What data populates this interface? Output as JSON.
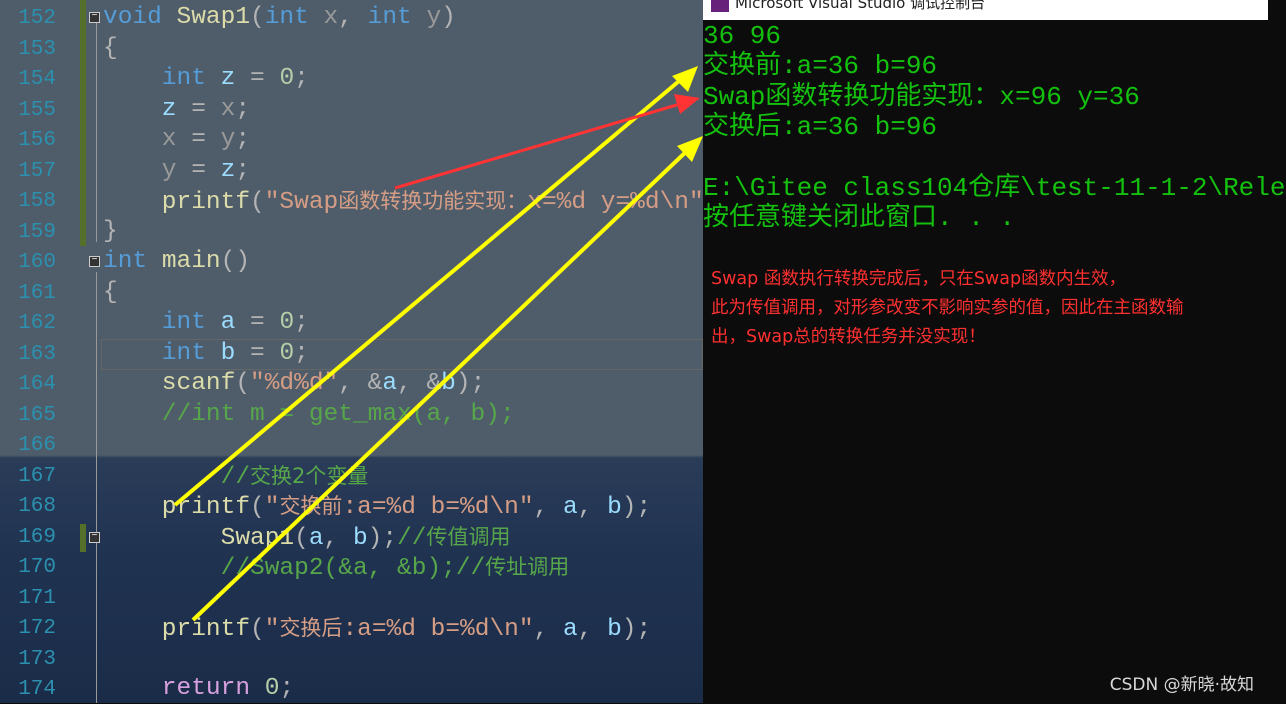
{
  "editor": {
    "colors": {
      "kw": "#569cd6",
      "fn": "#dcdcaa",
      "var": "#9cdcfe",
      "param": "#9a9a9a",
      "str": "#d69d85",
      "cmt": "#57a64a",
      "num": "#b5cea8",
      "punc": "#b4b4b4",
      "ctrl": "#d8a0df"
    },
    "lines": [
      {
        "num": "152",
        "tokens": [
          {
            "t": "void ",
            "c": "kw"
          },
          {
            "t": "Swap1",
            "c": "fn"
          },
          {
            "t": "(",
            "c": "punc"
          },
          {
            "t": "int ",
            "c": "kw"
          },
          {
            "t": "x",
            "c": "param"
          },
          {
            "t": ", ",
            "c": "punc"
          },
          {
            "t": "int ",
            "c": "kw"
          },
          {
            "t": "y",
            "c": "param"
          },
          {
            "t": ")",
            "c": "punc"
          }
        ]
      },
      {
        "num": "153",
        "tokens": [
          {
            "t": "{",
            "c": "punc"
          }
        ]
      },
      {
        "num": "154",
        "tokens": [
          {
            "t": "    int ",
            "c": "kw"
          },
          {
            "t": "z",
            "c": "var"
          },
          {
            "t": " = ",
            "c": "punc"
          },
          {
            "t": "0",
            "c": "num"
          },
          {
            "t": ";",
            "c": "punc"
          }
        ]
      },
      {
        "num": "155",
        "tokens": [
          {
            "t": "    z",
            "c": "var"
          },
          {
            "t": " = ",
            "c": "punc"
          },
          {
            "t": "x",
            "c": "param"
          },
          {
            "t": ";",
            "c": "punc"
          }
        ]
      },
      {
        "num": "156",
        "tokens": [
          {
            "t": "    x",
            "c": "param"
          },
          {
            "t": " = ",
            "c": "punc"
          },
          {
            "t": "y",
            "c": "param"
          },
          {
            "t": ";",
            "c": "punc"
          }
        ]
      },
      {
        "num": "157",
        "tokens": [
          {
            "t": "    y",
            "c": "param"
          },
          {
            "t": " = ",
            "c": "punc"
          },
          {
            "t": "z",
            "c": "var"
          },
          {
            "t": ";",
            "c": "punc"
          }
        ]
      },
      {
        "num": "158",
        "tokens": [
          {
            "t": "    printf",
            "c": "fn"
          },
          {
            "t": "(",
            "c": "punc"
          },
          {
            "t": "\"Swap",
            "c": "str"
          },
          {
            "t": "函数转换功能实现：",
            "c": "str",
            "cjk": true
          },
          {
            "t": "x=%d y=%d\\n\"",
            "c": "str"
          }
        ]
      },
      {
        "num": "159",
        "tokens": [
          {
            "t": "}",
            "c": "punc"
          }
        ]
      },
      {
        "num": "160",
        "tokens": [
          {
            "t": "int ",
            "c": "kw"
          },
          {
            "t": "main",
            "c": "fn"
          },
          {
            "t": "()",
            "c": "punc"
          }
        ]
      },
      {
        "num": "161",
        "tokens": [
          {
            "t": "{",
            "c": "punc"
          }
        ]
      },
      {
        "num": "162",
        "tokens": [
          {
            "t": "    int ",
            "c": "kw"
          },
          {
            "t": "a",
            "c": "var"
          },
          {
            "t": " = ",
            "c": "punc"
          },
          {
            "t": "0",
            "c": "num"
          },
          {
            "t": ";",
            "c": "punc"
          }
        ]
      },
      {
        "num": "163",
        "tokens": [
          {
            "t": "    int ",
            "c": "kw"
          },
          {
            "t": "b",
            "c": "var"
          },
          {
            "t": " = ",
            "c": "punc"
          },
          {
            "t": "0",
            "c": "num"
          },
          {
            "t": ";",
            "c": "punc"
          }
        ]
      },
      {
        "num": "164",
        "tokens": [
          {
            "t": "    scanf",
            "c": "fn"
          },
          {
            "t": "(",
            "c": "punc"
          },
          {
            "t": "\"%d%d\"",
            "c": "str"
          },
          {
            "t": ", &",
            "c": "punc"
          },
          {
            "t": "a",
            "c": "var"
          },
          {
            "t": ", &",
            "c": "punc"
          },
          {
            "t": "b",
            "c": "var"
          },
          {
            "t": ");",
            "c": "punc"
          }
        ]
      },
      {
        "num": "165",
        "tokens": [
          {
            "t": "    //int m = get_max(a, b);",
            "c": "cmt"
          }
        ]
      },
      {
        "num": "166",
        "tokens": []
      },
      {
        "num": "167",
        "tokens": [
          {
            "t": "        //",
            "c": "cmt"
          },
          {
            "t": "交换2个变量",
            "c": "cmt",
            "cjk": true
          }
        ]
      },
      {
        "num": "168",
        "tokens": [
          {
            "t": "    printf",
            "c": "fn"
          },
          {
            "t": "(",
            "c": "punc"
          },
          {
            "t": "\"",
            "c": "str"
          },
          {
            "t": "交换前",
            "c": "str",
            "cjk": true
          },
          {
            "t": ":a=%d b=%d\\n\"",
            "c": "str"
          },
          {
            "t": ", ",
            "c": "punc"
          },
          {
            "t": "a",
            "c": "var"
          },
          {
            "t": ", ",
            "c": "punc"
          },
          {
            "t": "b",
            "c": "var"
          },
          {
            "t": ");",
            "c": "punc"
          }
        ]
      },
      {
        "num": "169",
        "tokens": [
          {
            "t": "        Swap1",
            "c": "fn"
          },
          {
            "t": "(",
            "c": "punc"
          },
          {
            "t": "a",
            "c": "var"
          },
          {
            "t": ", ",
            "c": "punc"
          },
          {
            "t": "b",
            "c": "var"
          },
          {
            "t": ");",
            "c": "punc"
          },
          {
            "t": "//",
            "c": "cmt"
          },
          {
            "t": "传值调用",
            "c": "cmt",
            "cjk": true
          }
        ]
      },
      {
        "num": "170",
        "tokens": [
          {
            "t": "        //Swap2(&a, &b);//",
            "c": "cmt"
          },
          {
            "t": "传址调用",
            "c": "cmt",
            "cjk": true
          }
        ]
      },
      {
        "num": "171",
        "tokens": []
      },
      {
        "num": "172",
        "tokens": [
          {
            "t": "    printf",
            "c": "fn"
          },
          {
            "t": "(",
            "c": "punc"
          },
          {
            "t": "\"",
            "c": "str"
          },
          {
            "t": "交换后",
            "c": "str",
            "cjk": true
          },
          {
            "t": ":a=%d b=%d\\n\"",
            "c": "str"
          },
          {
            "t": ", ",
            "c": "punc"
          },
          {
            "t": "a",
            "c": "var"
          },
          {
            "t": ", ",
            "c": "punc"
          },
          {
            "t": "b",
            "c": "var"
          },
          {
            "t": ");",
            "c": "punc"
          }
        ]
      },
      {
        "num": "173",
        "tokens": []
      },
      {
        "num": "174",
        "tokens": [
          {
            "t": "    return ",
            "c": "ctrl"
          },
          {
            "t": "0",
            "c": "num"
          },
          {
            "t": ";",
            "c": "punc"
          }
        ]
      }
    ]
  },
  "console": {
    "title": "Microsoft Visual Studio 调试控制台",
    "text_color": "#13c10e",
    "lines": [
      "36 96",
      "交换前:a=36 b=96",
      "Swap函数转换功能实现：x=96 y=36",
      "交换后:a=36 b=96",
      "",
      "E:\\Gitee class104仓库\\test-11-1-2\\Rele",
      "按任意键关闭此窗口. . ."
    ],
    "note_color": "#ff3030",
    "note_lines": [
      "Swap 函数执行转换完成后，只在Swap函数内生效，",
      "此为传值调用，对形参改变不影响实参的值，因此在主函数输",
      "出，Swap总的转换任务并没实现！"
    ]
  },
  "annotation_colors": {
    "yellow": "#ffff00",
    "red": "#ff3333"
  },
  "watermark": "CSDN @新晓·故知"
}
